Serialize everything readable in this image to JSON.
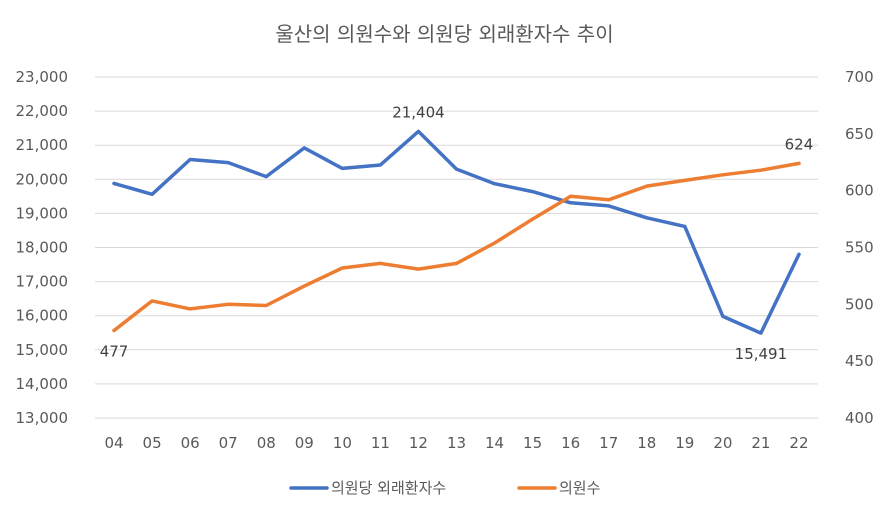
{
  "title": "울산의 의원수와 의원당 외래환자수 추이",
  "colors": {
    "blue": "#4472C4",
    "orange": "#ED7D31",
    "grid": "#D9D9D9",
    "text": "#595959"
  },
  "chart_data": {
    "type": "line",
    "title": "울산의 의원수와 의원당 외래환자수 추이",
    "categories": [
      "04",
      "05",
      "06",
      "07",
      "08",
      "09",
      "10",
      "11",
      "12",
      "13",
      "14",
      "15",
      "16",
      "17",
      "18",
      "19",
      "20",
      "21",
      "22"
    ],
    "series": [
      {
        "name": "의원당 외래환자수",
        "axis": "left",
        "color": "#4472C4",
        "values": [
          19880,
          19560,
          20580,
          20490,
          20080,
          20920,
          20320,
          20420,
          21404,
          20300,
          19870,
          19640,
          19310,
          19220,
          18870,
          18620,
          15980,
          15491,
          17800
        ]
      },
      {
        "name": "의원수",
        "axis": "right",
        "color": "#ED7D31",
        "values": [
          477,
          503,
          496,
          500,
          499,
          516,
          532,
          536,
          531,
          536,
          554,
          575,
          595,
          592,
          604,
          609,
          614,
          618,
          624
        ]
      }
    ],
    "y_left": {
      "min": 13000,
      "max": 23000,
      "step": 1000,
      "tick_labels": [
        "13,000",
        "14,000",
        "15,000",
        "16,000",
        "17,000",
        "18,000",
        "19,000",
        "20,000",
        "21,000",
        "22,000",
        "23,000"
      ]
    },
    "y_right": {
      "min": 400,
      "max": 700,
      "step": 50,
      "tick_labels": [
        "400",
        "450",
        "500",
        "550",
        "600",
        "650",
        "700"
      ]
    },
    "data_labels": [
      {
        "series": 0,
        "index": 8,
        "text": "21,404",
        "position": "above"
      },
      {
        "series": 0,
        "index": 17,
        "text": "15,491",
        "position": "below"
      },
      {
        "series": 1,
        "index": 0,
        "text": "477",
        "position": "below"
      },
      {
        "series": 1,
        "index": 18,
        "text": "624",
        "position": "above"
      }
    ],
    "grid": true,
    "legend": {
      "position": "bottom",
      "labels": [
        "의원당 외래환자수",
        "의원수"
      ]
    }
  }
}
